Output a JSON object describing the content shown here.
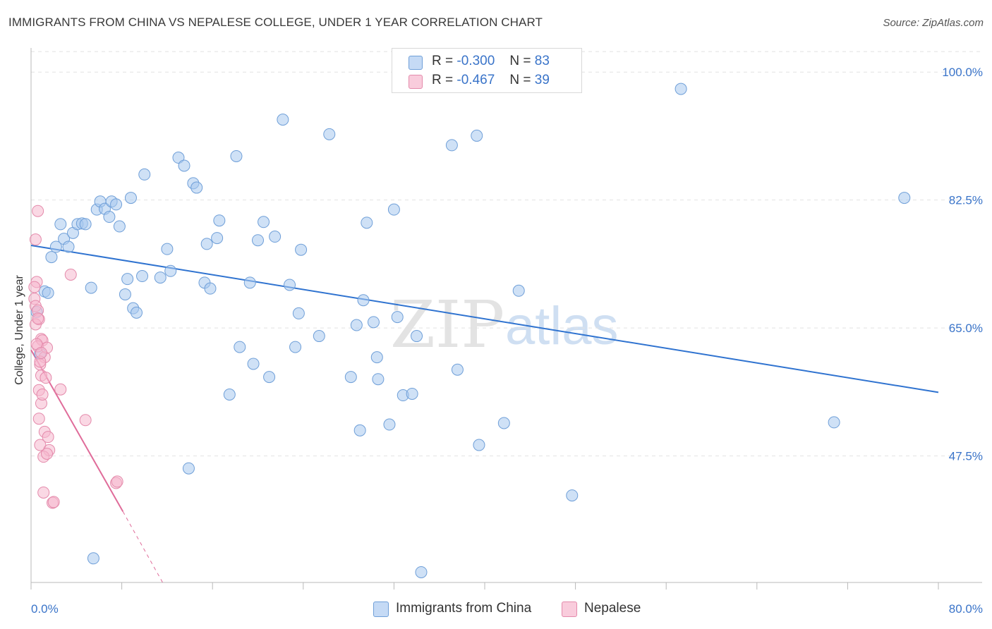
{
  "title": "IMMIGRANTS FROM CHINA VS NEPALESE COLLEGE, UNDER 1 YEAR CORRELATION CHART",
  "source": "Source: ZipAtlas.com",
  "watermark": {
    "zip": "ZIP",
    "atlas": "atlas"
  },
  "legend_top": [
    {
      "r_label": "R =",
      "r_value": "-0.300",
      "n_label": "N =",
      "n_value": "83",
      "color": "#a8c8ef"
    },
    {
      "r_label": "R =",
      "r_value": "-0.467",
      "n_label": "N =",
      "n_value": "39",
      "color": "#f5b8cd"
    }
  ],
  "chart_data": {
    "type": "scatter",
    "title": "IMMIGRANTS FROM CHINA VS NEPALESE COLLEGE, UNDER 1 YEAR CORRELATION CHART",
    "xlabel": "",
    "ylabel": "College, Under 1 year",
    "xlim": [
      0,
      80
    ],
    "ylim": [
      30.2,
      103.3
    ],
    "x_tick_labels": [
      "0.0%",
      "80.0%"
    ],
    "y_ticks": [
      47.5,
      65.0,
      82.5,
      100.0
    ],
    "y_tick_labels": [
      "47.5%",
      "65.0%",
      "82.5%",
      "100.0%"
    ],
    "grid": "horizontal dashed",
    "legend_position": "top-center and bottom",
    "series": [
      {
        "name": "Immigrants from China",
        "color": "#a8c8ef",
        "stroke": "#6f9fd8",
        "trend_color": "#2f73d0",
        "trend": {
          "x": [
            0,
            80
          ],
          "y": [
            76.3,
            56.2
          ]
        },
        "points": [
          [
            0.5,
            67.2
          ],
          [
            1.2,
            70.0
          ],
          [
            1.5,
            69.8
          ],
          [
            0.8,
            61.5
          ],
          [
            1.8,
            74.7
          ],
          [
            2.2,
            76.1
          ],
          [
            2.6,
            79.2
          ],
          [
            2.9,
            77.2
          ],
          [
            3.3,
            76.1
          ],
          [
            3.7,
            78.0
          ],
          [
            4.1,
            79.2
          ],
          [
            4.5,
            79.3
          ],
          [
            4.8,
            79.2
          ],
          [
            5.3,
            70.5
          ],
          [
            5.8,
            81.2
          ],
          [
            6.1,
            82.3
          ],
          [
            6.5,
            81.3
          ],
          [
            6.9,
            80.2
          ],
          [
            7.1,
            82.3
          ],
          [
            7.5,
            81.9
          ],
          [
            7.8,
            78.9
          ],
          [
            8.3,
            69.6
          ],
          [
            8.5,
            71.7
          ],
          [
            9.0,
            67.7
          ],
          [
            9.8,
            72.1
          ],
          [
            8.8,
            82.8
          ],
          [
            10.0,
            86.0
          ],
          [
            11.4,
            71.9
          ],
          [
            12.0,
            75.8
          ],
          [
            13.0,
            88.3
          ],
          [
            13.5,
            87.2
          ],
          [
            14.3,
            84.8
          ],
          [
            14.6,
            84.2
          ],
          [
            15.3,
            71.2
          ],
          [
            15.5,
            76.5
          ],
          [
            16.4,
            77.3
          ],
          [
            16.6,
            79.7
          ],
          [
            18.1,
            88.5
          ],
          [
            18.4,
            62.4
          ],
          [
            17.5,
            55.9
          ],
          [
            19.3,
            71.2
          ],
          [
            19.6,
            60.1
          ],
          [
            20.0,
            77.0
          ],
          [
            20.5,
            79.5
          ],
          [
            21.0,
            58.3
          ],
          [
            21.5,
            77.5
          ],
          [
            22.2,
            93.5
          ],
          [
            22.8,
            70.9
          ],
          [
            23.3,
            62.4
          ],
          [
            23.6,
            67.0
          ],
          [
            23.8,
            75.7
          ],
          [
            26.3,
            91.5
          ],
          [
            28.2,
            58.3
          ],
          [
            28.7,
            65.4
          ],
          [
            29.0,
            51.0
          ],
          [
            29.6,
            79.4
          ],
          [
            29.3,
            68.8
          ],
          [
            30.2,
            65.8
          ],
          [
            30.5,
            61.0
          ],
          [
            30.6,
            58.0
          ],
          [
            31.6,
            51.8
          ],
          [
            32.0,
            81.2
          ],
          [
            32.3,
            66.5
          ],
          [
            32.8,
            55.8
          ],
          [
            33.6,
            56.0
          ],
          [
            34.0,
            63.9
          ],
          [
            34.4,
            31.6
          ],
          [
            37.1,
            90.0
          ],
          [
            37.6,
            59.3
          ],
          [
            39.3,
            91.3
          ],
          [
            39.5,
            49.0
          ],
          [
            41.7,
            52.0
          ],
          [
            43.0,
            70.1
          ],
          [
            47.7,
            42.1
          ],
          [
            70.8,
            52.1
          ],
          [
            77.0,
            82.8
          ],
          [
            57.3,
            97.7
          ],
          [
            5.5,
            33.5
          ],
          [
            9.3,
            67.1
          ],
          [
            12.3,
            72.8
          ],
          [
            15.8,
            70.4
          ],
          [
            13.9,
            45.8
          ],
          [
            25.4,
            63.9
          ]
        ]
      },
      {
        "name": "Nepalese",
        "color": "#f5b8cd",
        "stroke": "#e48aab",
        "trend_color": "#e06c9a",
        "trend": {
          "x": [
            0,
            8.1
          ],
          "y": [
            62.0,
            39.9
          ]
        },
        "trend_dashed": {
          "x": [
            8.1,
            11.6
          ],
          "y": [
            39.9,
            30.2
          ]
        },
        "points": [
          [
            0.3,
            69.0
          ],
          [
            0.4,
            68.0
          ],
          [
            0.5,
            71.3
          ],
          [
            0.6,
            67.4
          ],
          [
            0.7,
            66.2
          ],
          [
            0.4,
            65.5
          ],
          [
            0.9,
            63.5
          ],
          [
            1.0,
            63.3
          ],
          [
            0.6,
            62.5
          ],
          [
            1.2,
            61.0
          ],
          [
            0.8,
            60.0
          ],
          [
            1.4,
            62.3
          ],
          [
            0.9,
            58.5
          ],
          [
            1.3,
            58.2
          ],
          [
            0.7,
            56.5
          ],
          [
            2.6,
            56.6
          ],
          [
            0.9,
            54.7
          ],
          [
            0.7,
            52.6
          ],
          [
            1.2,
            50.8
          ],
          [
            1.5,
            50.1
          ],
          [
            0.8,
            49.0
          ],
          [
            1.6,
            48.3
          ],
          [
            1.1,
            47.4
          ],
          [
            1.4,
            47.8
          ],
          [
            4.8,
            52.4
          ],
          [
            3.5,
            72.3
          ],
          [
            7.5,
            43.8
          ],
          [
            7.6,
            44.0
          ],
          [
            1.1,
            42.5
          ],
          [
            1.9,
            41.1
          ],
          [
            2.0,
            41.2
          ],
          [
            0.6,
            81.0
          ],
          [
            0.4,
            77.1
          ],
          [
            0.3,
            70.6
          ],
          [
            0.6,
            66.3
          ],
          [
            0.5,
            62.8
          ],
          [
            0.8,
            60.4
          ],
          [
            1.0,
            55.9
          ],
          [
            0.9,
            61.6
          ]
        ]
      }
    ]
  },
  "legend_bottom": [
    {
      "label": "Immigrants from China",
      "color": "#a8c8ef"
    },
    {
      "label": "Nepalese",
      "color": "#f5b8cd"
    }
  ]
}
